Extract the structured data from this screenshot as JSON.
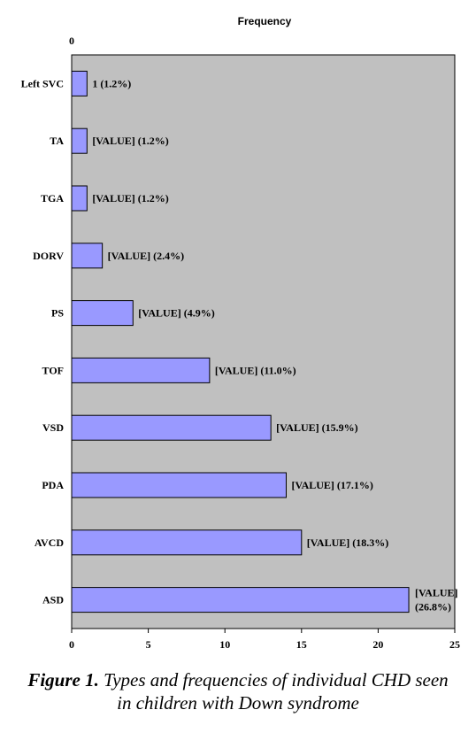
{
  "chart_data": {
    "type": "bar",
    "orientation": "horizontal",
    "title": "Frequency",
    "categories": [
      "Left SVC",
      "TA",
      "TGA",
      "DORV",
      "PS",
      "TOF",
      "VSD",
      "PDA",
      "AVCD",
      "ASD"
    ],
    "values": [
      1,
      1,
      1,
      2,
      4,
      9,
      13,
      14,
      15,
      22
    ],
    "data_labels": [
      "1 (1.2%)",
      "[VALUE] (1.2%)",
      "[VALUE] (1.2%)",
      "[VALUE] (2.4%)",
      "[VALUE] (4.9%)",
      "[VALUE] (11.0%)",
      "[VALUE] (15.9%)",
      "[VALUE] (17.1%)",
      "[VALUE] (18.3%)",
      [
        "[VALUE]",
        "(26.8%)"
      ]
    ],
    "xlim": [
      0,
      25
    ],
    "x_ticks": [
      0,
      5,
      10,
      15,
      20,
      25
    ],
    "top_tick_label": "0",
    "grid": false,
    "plot_background": "#c0c0c0",
    "bar_color": "#9999ff",
    "bar_edge_color": "#000000"
  },
  "caption": {
    "label": "Figure 1.",
    "line1": "Types and frequencies of individual CHD seen",
    "line2": "in children with Down syndrome"
  }
}
